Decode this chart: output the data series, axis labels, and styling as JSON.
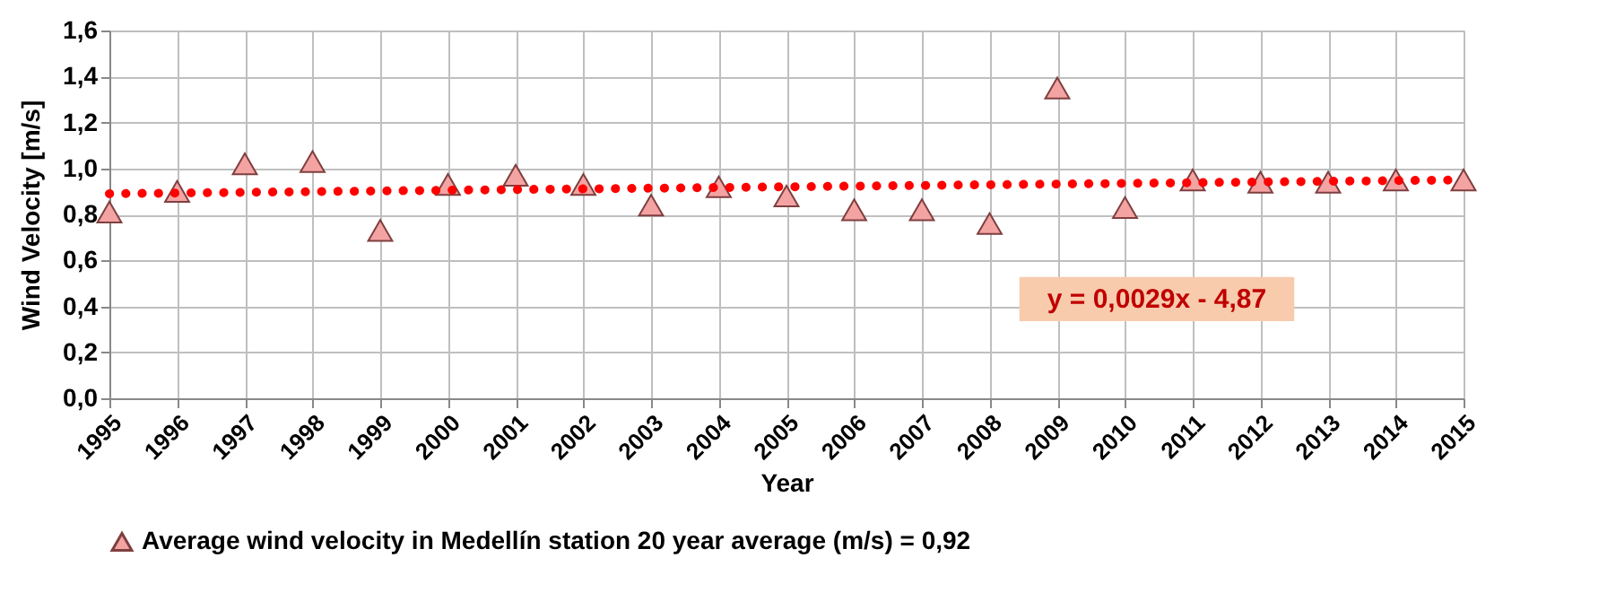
{
  "chart_data": {
    "type": "scatter",
    "xlabel": "Year",
    "ylabel": "Wind Velocity [m/s]",
    "x": [
      1995,
      1996,
      1997,
      1998,
      1999,
      2000,
      2001,
      2002,
      2003,
      2004,
      2005,
      2006,
      2007,
      2008,
      2009,
      2010,
      2011,
      2012,
      2013,
      2014,
      2015
    ],
    "series": [
      {
        "name": "Average wind velocity in Medellín station   20 year average (m/s) =  0,92",
        "color": "#f4a3a3",
        "marker": "triangle",
        "values": [
          0.81,
          0.9,
          1.02,
          1.03,
          0.73,
          0.93,
          0.97,
          0.93,
          0.84,
          0.92,
          0.88,
          0.82,
          0.82,
          0.76,
          1.35,
          0.83,
          0.95,
          0.94,
          0.94,
          0.95,
          0.95
        ]
      },
      {
        "type": "line",
        "color": "#ff0000",
        "line_style": "dotted",
        "marker": "none",
        "x": [
          1995,
          2015
        ],
        "values": [
          0.89,
          0.95
        ]
      }
    ],
    "annotations": [
      "y = 0,0029x - 4,87"
    ],
    "xlim": [
      1995,
      2015
    ],
    "xticks": [
      1995,
      1996,
      1997,
      1998,
      1999,
      2000,
      2001,
      2002,
      2003,
      2004,
      2005,
      2006,
      2007,
      2008,
      2009,
      2010,
      2011,
      2012,
      2013,
      2014,
      2015
    ],
    "ylim": [
      0,
      1.6
    ],
    "yticks": [
      {
        "value": 0,
        "label": "0,0"
      },
      {
        "value": 0.2,
        "label": "0,2"
      },
      {
        "value": 0.4,
        "label": "0,4"
      },
      {
        "value": 0.6,
        "label": "0,6"
      },
      {
        "value": 0.8,
        "label": "0,8"
      },
      {
        "value": 1.0,
        "label": "1,0"
      },
      {
        "value": 1.2,
        "label": "1,2"
      },
      {
        "value": 1.4,
        "label": "1,4"
      },
      {
        "value": 1.6,
        "label": "1,6"
      }
    ],
    "grid": true,
    "legend": "bottom"
  }
}
